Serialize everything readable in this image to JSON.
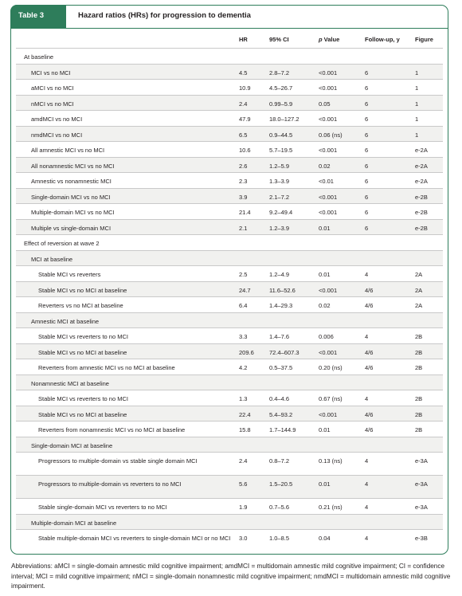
{
  "table": {
    "tag": "Table 3",
    "title": "Hazard ratios (HRs) for progression to dementia"
  },
  "columns": {
    "hr": "HR",
    "ci": "95% CI",
    "p_italic": "p",
    "p_rest": " Value",
    "followup": "Follow-up, y",
    "figure": "Figure"
  },
  "rows": [
    {
      "kind": "section",
      "indent": 0,
      "label": "At baseline",
      "hr": "",
      "ci": "",
      "p": "",
      "fu": "",
      "fig": ""
    },
    {
      "kind": "data",
      "indent": 1,
      "label": "MCI vs no MCI",
      "hr": "4.5",
      "ci": "2.8–7.2",
      "p": "<0.001",
      "fu": "6",
      "fig": "1"
    },
    {
      "kind": "data",
      "indent": 1,
      "label": "aMCI vs no MCI",
      "hr": "10.9",
      "ci": "4.5–26.7",
      "p": "<0.001",
      "fu": "6",
      "fig": "1"
    },
    {
      "kind": "data",
      "indent": 1,
      "label": "nMCI vs no MCI",
      "hr": "2.4",
      "ci": "0.99–5.9",
      "p": "0.05",
      "fu": "6",
      "fig": "1"
    },
    {
      "kind": "data",
      "indent": 1,
      "label": "amdMCI vs no MCI",
      "hr": "47.9",
      "ci": "18.0–127.2",
      "p": "<0.001",
      "fu": "6",
      "fig": "1"
    },
    {
      "kind": "data",
      "indent": 1,
      "label": "nmdMCI vs no MCI",
      "hr": "6.5",
      "ci": "0.9–44.5",
      "p": "0.06 (ns)",
      "fu": "6",
      "fig": "1"
    },
    {
      "kind": "data",
      "indent": 1,
      "label": "All amnestic MCI vs no MCI",
      "hr": "10.6",
      "ci": "5.7–19.5",
      "p": "<0.001",
      "fu": "6",
      "fig": "e-2A"
    },
    {
      "kind": "data",
      "indent": 1,
      "label": "All nonamnestic MCI vs no MCI",
      "hr": "2.6",
      "ci": "1.2–5.9",
      "p": "0.02",
      "fu": "6",
      "fig": "e-2A"
    },
    {
      "kind": "data",
      "indent": 1,
      "label": "Amnestic vs nonamnestic MCI",
      "hr": "2.3",
      "ci": "1.3–3.9",
      "p": "<0.01",
      "fu": "6",
      "fig": "e-2A"
    },
    {
      "kind": "data",
      "indent": 1,
      "label": "Single-domain MCI vs no MCI",
      "hr": "3.9",
      "ci": "2.1–7.2",
      "p": "<0.001",
      "fu": "6",
      "fig": "e-2B"
    },
    {
      "kind": "data",
      "indent": 1,
      "label": "Multiple-domain MCI vs no MCI",
      "hr": "21.4",
      "ci": "9.2–49.4",
      "p": "<0.001",
      "fu": "6",
      "fig": "e-2B"
    },
    {
      "kind": "data",
      "indent": 1,
      "label": "Multiple vs single-domain MCI",
      "hr": "2.1",
      "ci": "1.2–3.9",
      "p": "0.01",
      "fu": "6",
      "fig": "e-2B"
    },
    {
      "kind": "section",
      "indent": 0,
      "label": "Effect of reversion at wave 2",
      "hr": "",
      "ci": "",
      "p": "",
      "fu": "",
      "fig": ""
    },
    {
      "kind": "section",
      "indent": 1,
      "label": "MCI at baseline",
      "hr": "",
      "ci": "",
      "p": "",
      "fu": "",
      "fig": ""
    },
    {
      "kind": "data",
      "indent": 2,
      "label": "Stable MCI vs reverters",
      "hr": "2.5",
      "ci": "1.2–4.9",
      "p": "0.01",
      "fu": "4",
      "fig": "2A"
    },
    {
      "kind": "data",
      "indent": 2,
      "label": "Stable MCI vs no MCI at baseline",
      "hr": "24.7",
      "ci": "11.6–52.6",
      "p": "<0.001",
      "fu": "4/6",
      "fig": "2A"
    },
    {
      "kind": "data",
      "indent": 2,
      "label": "Reverters vs no MCI at baseline",
      "hr": "6.4",
      "ci": "1.4–29.3",
      "p": "0.02",
      "fu": "4/6",
      "fig": "2A"
    },
    {
      "kind": "section",
      "indent": 1,
      "label": "Amnestic MCI at baseline",
      "hr": "",
      "ci": "",
      "p": "",
      "fu": "",
      "fig": ""
    },
    {
      "kind": "data",
      "indent": 2,
      "label": "Stable MCI vs reverters to no MCI",
      "hr": "3.3",
      "ci": "1.4–7.6",
      "p": "0.006",
      "fu": "4",
      "fig": "2B"
    },
    {
      "kind": "data",
      "indent": 2,
      "label": "Stable MCI vs no MCI at baseline",
      "hr": "209.6",
      "ci": "72.4–607.3",
      "p": "<0.001",
      "fu": "4/6",
      "fig": "2B"
    },
    {
      "kind": "data",
      "indent": 2,
      "label": "Reverters from amnestic MCI vs no MCI at baseline",
      "hr": "4.2",
      "ci": "0.5–37.5",
      "p": "0.20 (ns)",
      "fu": "4/6",
      "fig": "2B"
    },
    {
      "kind": "section",
      "indent": 1,
      "label": "Nonamnestic MCI at baseline",
      "hr": "",
      "ci": "",
      "p": "",
      "fu": "",
      "fig": ""
    },
    {
      "kind": "data",
      "indent": 2,
      "label": "Stable MCI vs reverters to no MCI",
      "hr": "1.3",
      "ci": "0.4–4.6",
      "p": "0.67 (ns)",
      "fu": "4",
      "fig": "2B"
    },
    {
      "kind": "data",
      "indent": 2,
      "label": "Stable MCI vs no MCI at baseline",
      "hr": "22.4",
      "ci": "5.4–93.2",
      "p": "<0.001",
      "fu": "4/6",
      "fig": "2B"
    },
    {
      "kind": "data",
      "indent": 2,
      "label": "Reverters from nonamnestic MCI vs no MCI at baseline",
      "hr": "15.8",
      "ci": "1.7–144.9",
      "p": "0.01",
      "fu": "4/6",
      "fig": "2B"
    },
    {
      "kind": "section",
      "indent": 1,
      "label": "Single-domain MCI at baseline",
      "hr": "",
      "ci": "",
      "p": "",
      "fu": "",
      "fig": ""
    },
    {
      "kind": "data",
      "indent": 2,
      "label": "Progressors to multiple-domain vs stable single domain MCI",
      "hr": "2.4",
      "ci": "0.8–7.2",
      "p": "0.13 (ns)",
      "fu": "4",
      "fig": "e-3A"
    },
    {
      "kind": "data",
      "indent": 2,
      "label": "Progressors to multiple-domain vs reverters to no MCI",
      "hr": "5.6",
      "ci": "1.5–20.5",
      "p": "0.01",
      "fu": "4",
      "fig": "e-3A"
    },
    {
      "kind": "data",
      "indent": 2,
      "label": "Stable single-domain MCI vs reverters to no MCI",
      "hr": "1.9",
      "ci": "0.7–5.6",
      "p": "0.21 (ns)",
      "fu": "4",
      "fig": "e-3A"
    },
    {
      "kind": "section",
      "indent": 1,
      "label": "Multiple-domain MCI at baseline",
      "hr": "",
      "ci": "",
      "p": "",
      "fu": "",
      "fig": ""
    },
    {
      "kind": "data",
      "indent": 2,
      "label": "Stable multiple-domain MCI vs reverters to single-domain MCI or no MCI",
      "hr": "3.0",
      "ci": "1.0–8.5",
      "p": "0.04",
      "fu": "4",
      "fig": "e-3B"
    }
  ],
  "abbreviations": "Abbreviations: aMCI = single-domain amnestic mild cognitive impairment; amdMCI = multidomain amnestic mild cognitive impairment; CI = confidence interval; MCI = mild cognitive impairment; nMCI = single-domain nonamnestic mild cognitive impairment; nmdMCI = multidomain amnestic mild cognitive impairment.",
  "colors": {
    "frame": "#2e7d5b",
    "shade": "#f1f1ef",
    "rule": "#c9c9c9"
  }
}
